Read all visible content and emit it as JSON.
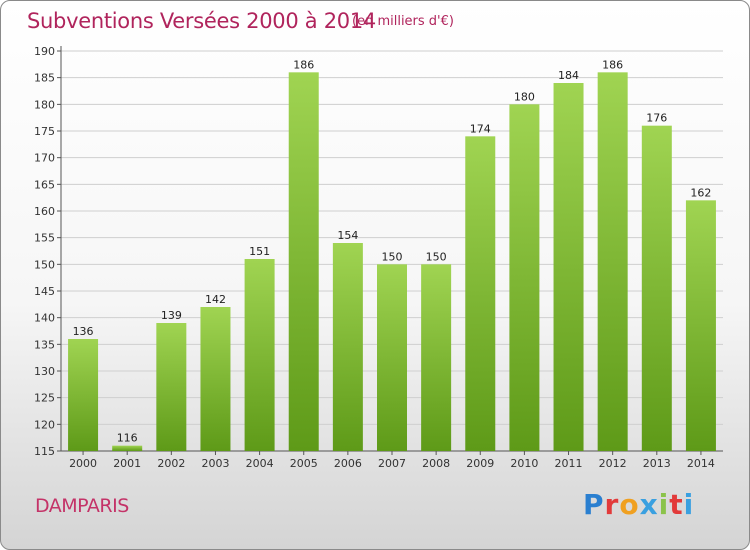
{
  "title": "Subventions Versées 2000 à 2014",
  "subtitle": "(en milliers d'€)",
  "commune": "DAMPARIS",
  "logo": {
    "letters": [
      "P",
      "r",
      "o",
      "x",
      "i",
      "t",
      "i"
    ],
    "colors": [
      "#2a7fd0",
      "#e23a3a",
      "#f0a020",
      "#3aa0e0",
      "#8bc34a",
      "#e23a3a",
      "#3aa0e0"
    ]
  },
  "colors": {
    "bar_light": "#9ad04a",
    "bar_dark": "#5e9a18",
    "grid": "#cfcfcf",
    "title": "#b0245c"
  },
  "chart_data": {
    "type": "bar",
    "categories": [
      "2000",
      "2001",
      "2002",
      "2003",
      "2004",
      "2005",
      "2006",
      "2007",
      "2008",
      "2009",
      "2010",
      "2011",
      "2012",
      "2013",
      "2014"
    ],
    "values": [
      136,
      116,
      139,
      142,
      151,
      186,
      154,
      150,
      150,
      174,
      180,
      184,
      186,
      176,
      162
    ],
    "ylim": [
      115,
      190
    ],
    "yticks": [
      115,
      120,
      125,
      130,
      135,
      140,
      145,
      150,
      155,
      160,
      165,
      170,
      175,
      180,
      185,
      190
    ],
    "grid": true
  }
}
